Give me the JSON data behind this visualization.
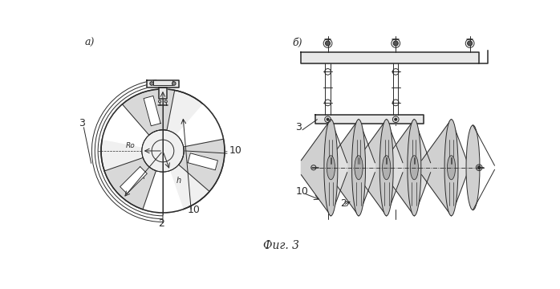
{
  "bg_color": "#ffffff",
  "line_color": "#2a2a2a",
  "fig_width": 6.98,
  "fig_height": 3.6,
  "caption": "Фиг. 3",
  "label_a": "а)",
  "label_b": "б)"
}
